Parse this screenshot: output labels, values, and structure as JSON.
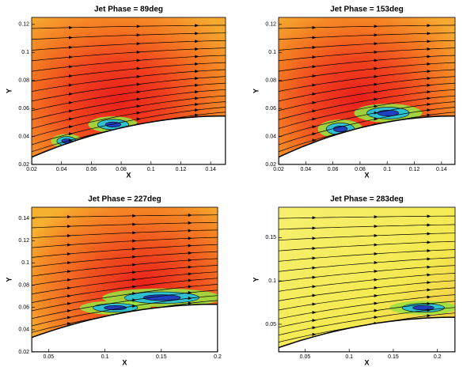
{
  "chart_data": [
    {
      "type": "contour",
      "title": "Jet Phase = 89deg",
      "x_label": "X",
      "y_label": "Y",
      "xlim": [
        0.02,
        0.15
      ],
      "ylim": [
        0.02,
        0.125
      ],
      "xticks": [
        0.02,
        0.04,
        0.06,
        0.08,
        0.1,
        0.12,
        0.14
      ],
      "yticks": [
        0.02,
        0.04,
        0.06,
        0.08,
        0.1,
        0.12
      ]
    },
    {
      "type": "contour",
      "title": "Jet Phase = 153deg",
      "x_label": "X",
      "y_label": "Y",
      "xlim": [
        0.02,
        0.15
      ],
      "ylim": [
        0.02,
        0.125
      ],
      "xticks": [
        0.02,
        0.04,
        0.06,
        0.08,
        0.1,
        0.12,
        0.14
      ],
      "yticks": [
        0.02,
        0.04,
        0.06,
        0.08,
        0.1,
        0.12
      ]
    },
    {
      "type": "contour",
      "title": "Jet Phase = 227deg",
      "x_label": "X",
      "y_label": "Y",
      "xlim": [
        0.035,
        0.2
      ],
      "ylim": [
        0.02,
        0.15
      ],
      "xticks": [
        0.05,
        0.1,
        0.15,
        0.2
      ],
      "yticks": [
        0.02,
        0.04,
        0.06,
        0.08,
        0.1,
        0.12,
        0.14
      ]
    },
    {
      "type": "contour",
      "title": "Jet Phase = 283deg",
      "x_label": "X",
      "y_label": "Y",
      "xlim": [
        0.02,
        0.22
      ],
      "ylim": [
        0.018,
        0.185
      ],
      "xticks": [
        0.05,
        0.1,
        0.15,
        0.2
      ],
      "yticks": [
        0.05,
        0.1,
        0.15
      ]
    }
  ]
}
